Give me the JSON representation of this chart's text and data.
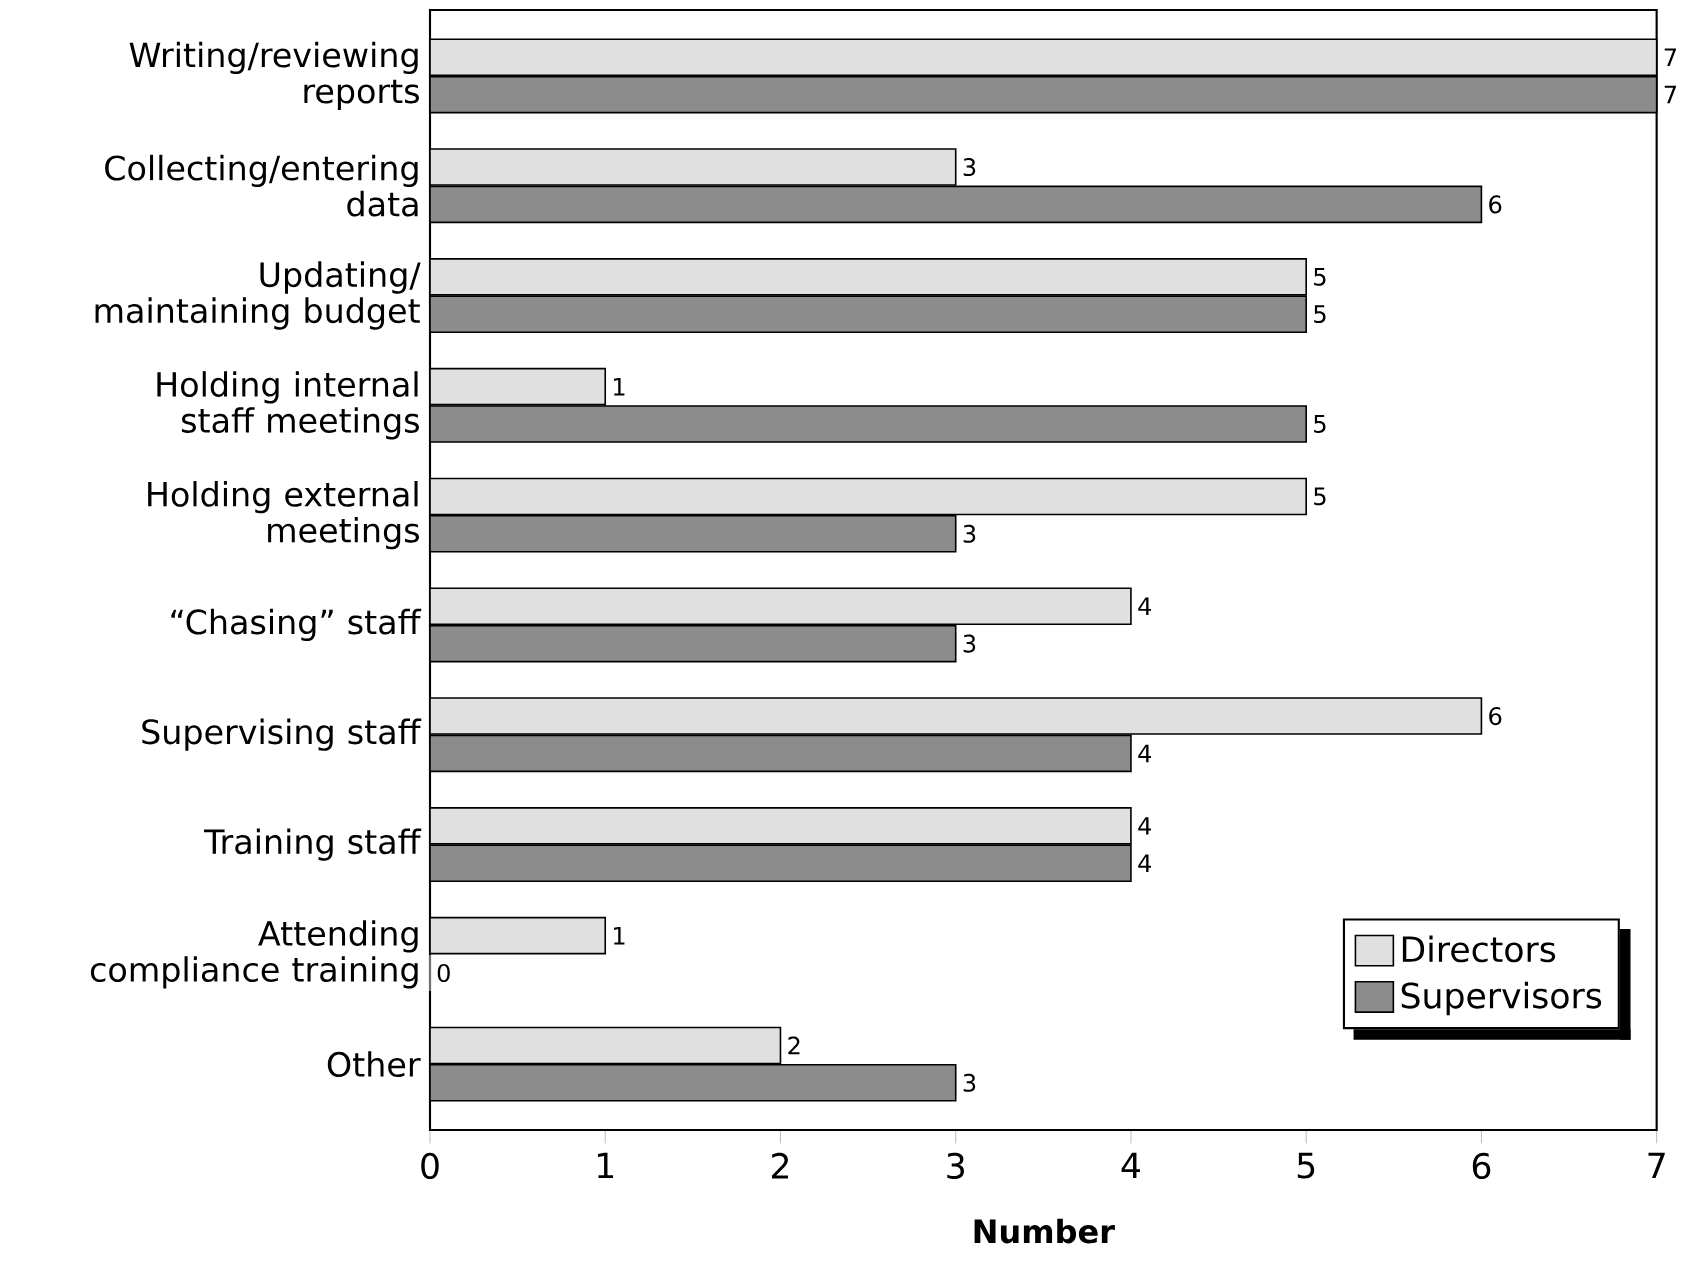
{
  "chart_data": {
    "type": "bar",
    "orientation": "horizontal",
    "xlabel": "Number",
    "categories": [
      "Writing/reviewing reports",
      "Collecting/entering data",
      "Updating/ maintaining budget",
      "Holding internal staff meetings",
      "Holding external meetings",
      "“Chasing” staff",
      "Supervising staff",
      "Training staff",
      "Attending compliance training",
      "Other"
    ],
    "series": [
      {
        "name": "Directors",
        "color": "#e0e0e0",
        "values": [
          7,
          3,
          5,
          1,
          5,
          4,
          6,
          4,
          1,
          2
        ]
      },
      {
        "name": "Supervisors",
        "color": "#8c8c8c",
        "values": [
          7,
          6,
          5,
          5,
          3,
          3,
          4,
          4,
          0,
          3
        ]
      }
    ],
    "xlim": [
      0,
      7
    ],
    "xticks": [
      0,
      1,
      2,
      3,
      4,
      5,
      6,
      7
    ],
    "data_labels": true,
    "legend": "bottom right",
    "grid": false
  }
}
